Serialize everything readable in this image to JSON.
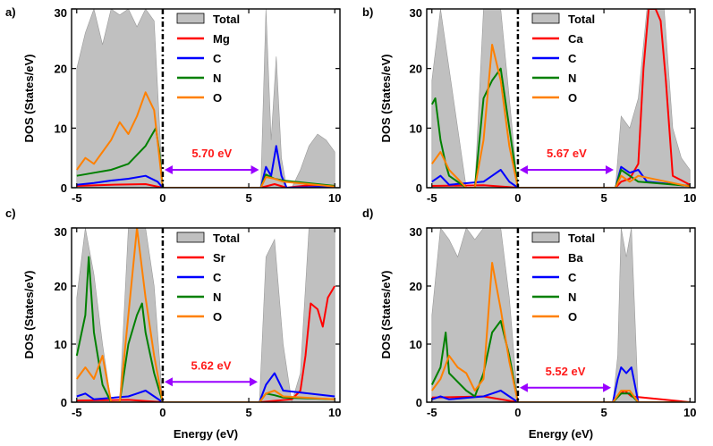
{
  "figure": {
    "xlabel": "Energy (eV)",
    "ylabel": "DOS (States/eV)"
  },
  "colors": {
    "total": "#c0c0c0",
    "metal": "#ff0000",
    "C": "#0000ff",
    "N": "#008000",
    "O": "#ff8000",
    "arrow": "#9900ff",
    "gap_text": "#ff1a1a"
  },
  "chart_data": [
    {
      "type": "area",
      "panel_label": "a)",
      "title": "",
      "xlabel": "Energy (eV)",
      "ylabel": "DOS (States/eV)",
      "xlim": [
        -5.3,
        10.3
      ],
      "ylim": [
        0,
        30
      ],
      "xticks": [
        -5,
        0,
        5,
        10
      ],
      "yticks": [
        0,
        10,
        20,
        30
      ],
      "fermi_level": 0,
      "legend": [
        "Total",
        "Mg",
        "C",
        "N",
        "O"
      ],
      "band_gap": {
        "label": "5.70 eV",
        "from": 0,
        "to": 5.7,
        "y": 3
      },
      "series": [
        {
          "name": "Total",
          "x": [
            -5.0,
            -4.5,
            -4.0,
            -3.5,
            -3.0,
            -2.5,
            -2.0,
            -1.5,
            -1.0,
            -0.5,
            0.0,
            5.7,
            6.0,
            6.3,
            6.6,
            6.9,
            7.2,
            7.5,
            8.0,
            8.5,
            9.0,
            9.5,
            10.0
          ],
          "values": [
            20,
            26,
            30,
            24,
            30,
            29,
            30,
            27,
            30,
            28,
            0,
            0,
            30,
            8,
            22,
            5,
            0,
            0,
            3,
            7,
            9,
            8,
            6
          ]
        },
        {
          "name": "Mg",
          "x": [
            -5.0,
            -3.0,
            -1.0,
            0.0,
            5.7,
            6.5,
            7.2,
            8.5,
            10.0
          ],
          "values": [
            0.3,
            0.5,
            0.6,
            0,
            0,
            0.6,
            0,
            0.4,
            0.3
          ]
        },
        {
          "name": "C",
          "x": [
            -5.0,
            -4.0,
            -3.0,
            -2.0,
            -1.0,
            -0.3,
            0.0,
            5.7,
            6.0,
            6.3,
            6.6,
            6.9,
            7.2,
            10.0
          ],
          "values": [
            0.5,
            0.8,
            1.2,
            1.5,
            2,
            1,
            0,
            0,
            3.5,
            2,
            7,
            2,
            0,
            0.2
          ]
        },
        {
          "name": "N",
          "x": [
            -5.0,
            -4.0,
            -3.0,
            -2.0,
            -1.0,
            -0.4,
            -0.2,
            0.0,
            5.7,
            6.0,
            6.5,
            7.0,
            10.0
          ],
          "values": [
            2,
            2.5,
            3,
            4,
            7,
            10,
            6,
            0,
            0,
            2.2,
            1.5,
            1.2,
            0.3
          ]
        },
        {
          "name": "O",
          "x": [
            -5.0,
            -4.5,
            -4.0,
            -3.5,
            -3.0,
            -2.5,
            -2.0,
            -1.5,
            -1.0,
            -0.5,
            0.0,
            5.7,
            6.0,
            6.5,
            7.0,
            10.0
          ],
          "values": [
            3,
            5,
            4,
            6,
            8,
            11,
            9,
            12,
            16,
            13,
            0,
            0,
            1.8,
            1.5,
            1,
            0.2
          ]
        }
      ]
    },
    {
      "type": "area",
      "panel_label": "b)",
      "title": "",
      "xlabel": "Energy (eV)",
      "ylabel": "DOS (States/eV)",
      "xlim": [
        -5.3,
        10.3
      ],
      "ylim": [
        0,
        30
      ],
      "xticks": [
        -5,
        0,
        5,
        10
      ],
      "yticks": [
        0,
        10,
        20,
        30
      ],
      "fermi_level": 0,
      "legend": [
        "Total",
        "Ca",
        "C",
        "N",
        "O"
      ],
      "band_gap": {
        "label": "5.67 eV",
        "from": 0,
        "to": 5.67,
        "y": 3
      },
      "series": [
        {
          "name": "Total",
          "x": [
            -5.0,
            -4.5,
            -4.0,
            -3.0,
            -2.5,
            -2.0,
            -1.5,
            -1.0,
            -0.5,
            0.0,
            5.67,
            6.0,
            6.5,
            7.0,
            7.5,
            8.0,
            8.5,
            9.0,
            9.5,
            10.0
          ],
          "values": [
            18,
            30,
            20,
            0,
            0,
            30,
            30,
            30,
            15,
            0,
            0,
            12,
            10,
            15,
            30,
            30,
            30,
            10,
            5,
            3
          ]
        },
        {
          "name": "Ca",
          "x": [
            -5.0,
            -2.0,
            0.0,
            5.67,
            6.0,
            6.5,
            7.0,
            7.3,
            7.6,
            8.0,
            8.3,
            8.6,
            9.0,
            10.0
          ],
          "values": [
            0.3,
            0.4,
            0,
            0,
            1,
            1.5,
            4,
            20,
            30,
            30,
            28,
            18,
            2,
            0.5
          ]
        },
        {
          "name": "C",
          "x": [
            -5.0,
            -4.5,
            -4.0,
            -2.0,
            -1.5,
            -1.0,
            -0.5,
            0.0,
            5.67,
            6.0,
            6.5,
            7.0,
            7.5,
            10.0
          ],
          "values": [
            1,
            2,
            0.5,
            1,
            2,
            3,
            1,
            0,
            0,
            3.5,
            2.5,
            3,
            1,
            0.3
          ]
        },
        {
          "name": "N",
          "x": [
            -5.0,
            -4.8,
            -4.5,
            -4.2,
            -4.0,
            -3.0,
            -2.5,
            -2.0,
            -1.5,
            -1.0,
            -0.6,
            -0.3,
            0.0,
            5.67,
            6.0,
            6.5,
            7.0,
            10.0
          ],
          "values": [
            14,
            15,
            8,
            4,
            2,
            0,
            0,
            15,
            18,
            20,
            12,
            6,
            0,
            0,
            3,
            2,
            1,
            0.3
          ]
        },
        {
          "name": "O",
          "x": [
            -5.0,
            -4.5,
            -4.0,
            -3.0,
            -2.5,
            -2.0,
            -1.5,
            -1.0,
            -0.5,
            0.0,
            5.67,
            6.0,
            6.5,
            7.0,
            10.0
          ],
          "values": [
            4,
            6,
            3,
            0,
            0,
            8,
            24,
            18,
            7,
            0,
            0,
            2,
            1,
            2,
            0.2
          ]
        }
      ]
    },
    {
      "type": "area",
      "panel_label": "c)",
      "title": "",
      "xlabel": "Energy (eV)",
      "ylabel": "DOS (States/eV)",
      "xlim": [
        -5.3,
        10.3
      ],
      "ylim": [
        0,
        30
      ],
      "xticks": [
        -5,
        0,
        5,
        10
      ],
      "yticks": [
        0,
        10,
        20,
        30
      ],
      "fermi_level": 0,
      "legend": [
        "Total",
        "Sr",
        "C",
        "N",
        "O"
      ],
      "band_gap": {
        "label": "5.62 eV",
        "from": 0,
        "to": 5.62,
        "y": 3.5
      },
      "series": [
        {
          "name": "Total",
          "x": [
            -5.0,
            -4.5,
            -4.0,
            -3.5,
            -3.0,
            -2.5,
            -2.0,
            -1.5,
            -1.0,
            -0.5,
            0.0,
            5.62,
            6.0,
            6.5,
            7.0,
            7.5,
            8.0,
            8.5,
            9.0,
            9.5,
            10.0
          ],
          "values": [
            18,
            30,
            22,
            10,
            0,
            0,
            30,
            30,
            30,
            20,
            0,
            0,
            25,
            28,
            10,
            0,
            5,
            30,
            30,
            30,
            30
          ]
        },
        {
          "name": "Sr",
          "x": [
            -5.0,
            -2.0,
            0.0,
            5.62,
            7.5,
            8.0,
            8.3,
            8.6,
            9.0,
            9.3,
            9.6,
            10.0
          ],
          "values": [
            0.3,
            0.4,
            0,
            0,
            0.5,
            2,
            8,
            17,
            16,
            13,
            18,
            20
          ]
        },
        {
          "name": "C",
          "x": [
            -5.0,
            -4.5,
            -4.0,
            -2.0,
            -1.5,
            -1.0,
            -0.5,
            0.0,
            5.62,
            6.0,
            6.5,
            7.0,
            10.0
          ],
          "values": [
            1,
            1.5,
            0.5,
            1,
            1.5,
            2,
            1,
            0,
            0,
            3,
            5,
            2,
            1
          ]
        },
        {
          "name": "N",
          "x": [
            -5.0,
            -4.5,
            -4.3,
            -4.0,
            -3.5,
            -3.0,
            -2.5,
            -2.0,
            -1.5,
            -1.2,
            -1.0,
            -0.5,
            0.0,
            5.62,
            6.0,
            6.5,
            7.0,
            10.0
          ],
          "values": [
            8,
            15,
            25,
            12,
            3,
            0,
            0,
            10,
            15,
            17,
            12,
            5,
            0,
            0,
            1.5,
            1.2,
            0.8,
            0.5
          ]
        },
        {
          "name": "O",
          "x": [
            -5.0,
            -4.5,
            -4.0,
            -3.5,
            -3.0,
            -2.5,
            -2.0,
            -1.5,
            -1.0,
            -0.5,
            0.0,
            5.62,
            6.0,
            6.5,
            7.0,
            10.0
          ],
          "values": [
            4,
            6,
            4,
            8,
            0,
            0,
            15,
            30,
            18,
            8,
            0,
            0,
            1.5,
            2,
            1,
            0.5
          ]
        }
      ]
    },
    {
      "type": "area",
      "panel_label": "d)",
      "title": "",
      "xlabel": "Energy (eV)",
      "ylabel": "DOS (States/eV)",
      "xlim": [
        -5.3,
        10.3
      ],
      "ylim": [
        0,
        30
      ],
      "xticks": [
        -5,
        0,
        5,
        10
      ],
      "yticks": [
        0,
        10,
        20,
        30
      ],
      "fermi_level": 0,
      "legend": [
        "Total",
        "Ba",
        "C",
        "N",
        "O"
      ],
      "band_gap": {
        "label": "5.52 eV",
        "from": 0,
        "to": 5.52,
        "y": 2.5
      },
      "series": [
        {
          "name": "Total",
          "x": [
            -5.0,
            -4.5,
            -4.0,
            -3.5,
            -3.0,
            -2.5,
            -2.0,
            -1.5,
            -1.0,
            -0.5,
            0.0,
            5.52,
            5.8,
            6.0,
            6.3,
            6.6,
            7.0,
            10.0
          ],
          "values": [
            15,
            30,
            28,
            25,
            30,
            28,
            30,
            30,
            30,
            18,
            0,
            0,
            8,
            30,
            25,
            30,
            0,
            0
          ]
        },
        {
          "name": "Ba",
          "x": [
            -5.0,
            -2.0,
            0.0,
            5.52,
            5.8,
            6.2,
            6.6,
            10.0
          ],
          "values": [
            0.8,
            1,
            0,
            0,
            1,
            2,
            1,
            0
          ]
        },
        {
          "name": "C",
          "x": [
            -5.0,
            -4.5,
            -4.0,
            -2.0,
            -1.5,
            -1.0,
            -0.5,
            0.0,
            5.52,
            5.8,
            6.0,
            6.3,
            6.6,
            7.0,
            10.0
          ],
          "values": [
            0.5,
            1,
            0.5,
            1,
            1.5,
            2,
            1,
            0,
            0,
            4,
            6,
            5,
            6,
            0,
            0
          ]
        },
        {
          "name": "N",
          "x": [
            -5.0,
            -4.5,
            -4.2,
            -4.0,
            -3.0,
            -2.5,
            -2.0,
            -1.5,
            -1.0,
            -0.5,
            0.0,
            5.52,
            6.0,
            6.5,
            7.0,
            10.0
          ],
          "values": [
            3,
            6,
            12,
            5,
            2,
            1,
            5,
            12,
            14,
            8,
            0,
            0,
            1.5,
            1.5,
            0,
            0
          ]
        },
        {
          "name": "O",
          "x": [
            -5.0,
            -4.5,
            -4.0,
            -3.5,
            -3.0,
            -2.5,
            -2.0,
            -1.5,
            -1.0,
            -0.5,
            0.0,
            5.52,
            6.0,
            6.5,
            7.0,
            10.0
          ],
          "values": [
            2,
            4,
            8,
            6,
            5,
            2,
            4,
            24,
            16,
            7,
            0,
            0,
            2,
            2,
            0,
            0
          ]
        }
      ]
    }
  ]
}
